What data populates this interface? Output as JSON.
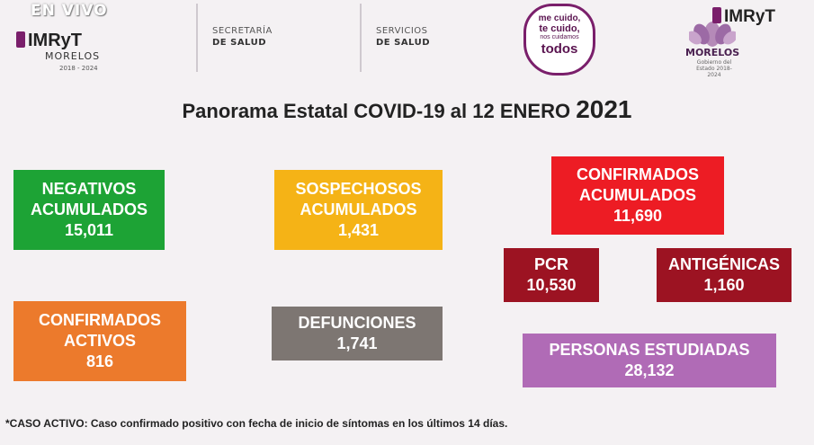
{
  "header": {
    "live_label": "EN VIVO",
    "left_logo": {
      "name": "IMRyT",
      "place": "MORELOS",
      "years": "2018 - 2024"
    },
    "dept1": {
      "line1": "SECRETARÍA",
      "line2": "DE SALUD"
    },
    "dept2": {
      "line1": "SERVICIOS",
      "line2": "DE SALUD"
    },
    "campaign": {
      "line1": "me cuido,",
      "line2": "te cuido,",
      "line3": "nos cuidamos",
      "line4": "todos"
    },
    "right_logo": {
      "name": "IMRyT",
      "place": "MORELOS",
      "tagline": "Gobierno del Estado 2018-2024"
    }
  },
  "title": {
    "text": "Panorama Estatal COVID-19 al 12 ENERO",
    "year": "2021"
  },
  "cards": {
    "negativos": {
      "line1": "NEGATIVOS",
      "line2": "ACUMULADOS",
      "value": "15,011"
    },
    "sospechosos": {
      "line1": "SOSPECHOSOS",
      "line2": "ACUMULADOS",
      "value": "1,431"
    },
    "confirmados_acum": {
      "line1": "CONFIRMADOS",
      "line2": "ACUMULADOS",
      "value": "11,690"
    },
    "pcr": {
      "line1": "PCR",
      "value": "10,530"
    },
    "antigenicas": {
      "line1": "ANTIGÉNICAS",
      "value": "1,160"
    },
    "confirmados_activos": {
      "line1": "CONFIRMADOS",
      "line2": "ACTIVOS",
      "value": "816"
    },
    "defunciones": {
      "line1": "DEFUNCIONES",
      "value": "1,741"
    },
    "personas": {
      "line1": "PERSONAS ESTUDIADAS",
      "value": "28,132"
    }
  },
  "footnote": "*CASO ACTIVO: Caso confirmado positivo con fecha de inicio de síntomas en los últimos 14 días.",
  "colors": {
    "green": "#1da335",
    "yellow": "#f5b316",
    "orange": "#ec7a2c",
    "gray": "#7d7672",
    "red": "#ed1c24",
    "maroon": "#9c1322",
    "violet": "#b06bb6"
  }
}
